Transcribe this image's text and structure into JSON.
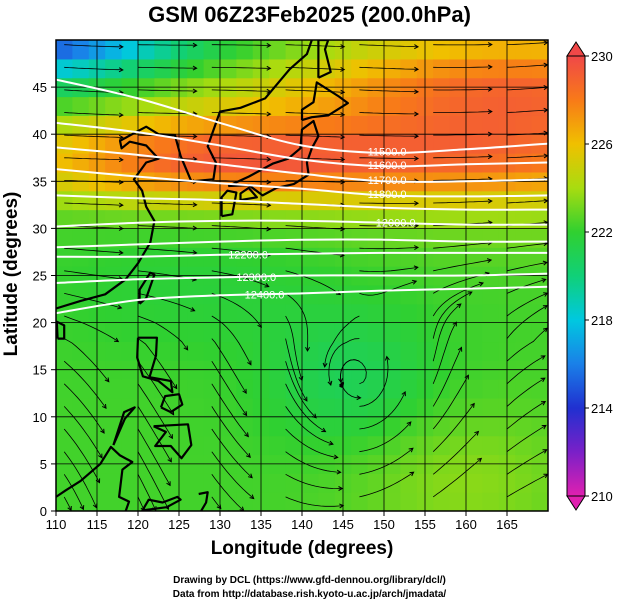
{
  "title": "GSM 06Z23Feb2025 (200.0hPa)",
  "credits": {
    "line1": "Drawing by DCL (https://www.gfd-dennou.org/library/dcl/)",
    "line2": "Data from http://database.rish.kyoto-u.ac.jp/arch/jmadata/"
  },
  "chart_data": {
    "type": "heatmap",
    "title": "GSM 06Z23Feb2025 (200.0hPa)",
    "xlabel": "Longitude (degrees)",
    "ylabel": "Latitude  (degrees)",
    "xlim": [
      110,
      170
    ],
    "ylim": [
      0,
      50
    ],
    "x_ticks": [
      110,
      115,
      120,
      125,
      130,
      135,
      140,
      145,
      150,
      155,
      160,
      165
    ],
    "y_ticks": [
      0,
      5,
      10,
      15,
      20,
      25,
      30,
      35,
      40,
      45
    ],
    "grid": true,
    "colorbar": {
      "min": 210,
      "max": 230,
      "ticks": [
        210,
        214,
        218,
        222,
        226,
        230
      ],
      "stops": [
        {
          "value": 210,
          "color": "#e020b0"
        },
        {
          "value": 212,
          "color": "#7a20c8"
        },
        {
          "value": 214,
          "color": "#2030d0"
        },
        {
          "value": 216,
          "color": "#1a80e8"
        },
        {
          "value": 218,
          "color": "#00c8e0"
        },
        {
          "value": 220,
          "color": "#10d078"
        },
        {
          "value": 222,
          "color": "#30d030"
        },
        {
          "value": 224,
          "color": "#a8dc10"
        },
        {
          "value": 226,
          "color": "#f0c000"
        },
        {
          "value": 228,
          "color": "#f87a18"
        },
        {
          "value": 230,
          "color": "#f04848"
        }
      ]
    },
    "height_contours": [
      {
        "label": "11500.0",
        "points": [
          [
            110,
            45.8
          ],
          [
            120,
            43.8
          ],
          [
            130,
            41.2
          ],
          [
            140,
            38.8
          ],
          [
            150,
            38.0
          ],
          [
            160,
            38.4
          ],
          [
            170,
            39.0
          ]
        ]
      },
      {
        "label": "11600.0",
        "points": [
          [
            110,
            41.2
          ],
          [
            120,
            40.2
          ],
          [
            130,
            38.8
          ],
          [
            140,
            37.3
          ],
          [
            150,
            36.6
          ],
          [
            160,
            36.8
          ],
          [
            170,
            37.0
          ]
        ]
      },
      {
        "label": "11700.0",
        "points": [
          [
            110,
            38.6
          ],
          [
            120,
            37.8
          ],
          [
            130,
            36.8
          ],
          [
            140,
            35.8
          ],
          [
            150,
            35.0
          ],
          [
            160,
            35.0
          ],
          [
            170,
            35.2
          ]
        ]
      },
      {
        "label": "11800.0",
        "points": [
          [
            110,
            36.3
          ],
          [
            120,
            35.5
          ],
          [
            130,
            34.8
          ],
          [
            140,
            34.2
          ],
          [
            150,
            33.5
          ],
          [
            160,
            33.4
          ],
          [
            170,
            33.5
          ]
        ]
      },
      {
        "label": "11900.0",
        "points": [
          [
            110,
            33.5
          ],
          [
            120,
            33.2
          ],
          [
            130,
            33.0
          ],
          [
            140,
            32.6
          ],
          [
            150,
            32.2
          ],
          [
            160,
            32.0
          ],
          [
            170,
            32.0
          ]
        ]
      },
      {
        "label": "12000.0",
        "points": [
          [
            110,
            30.2
          ],
          [
            120,
            30.6
          ],
          [
            130,
            30.8
          ],
          [
            140,
            30.8
          ],
          [
            150,
            30.6
          ],
          [
            160,
            30.4
          ],
          [
            170,
            30.4
          ]
        ]
      },
      {
        "label": "12100.0",
        "points": [
          [
            110,
            28.0
          ],
          [
            120,
            28.3
          ],
          [
            130,
            28.6
          ],
          [
            140,
            28.8
          ],
          [
            150,
            28.8
          ],
          [
            160,
            28.6
          ],
          [
            170,
            28.6
          ]
        ]
      },
      {
        "label": "12200.0",
        "points": [
          [
            110,
            27.0
          ],
          [
            120,
            27.0
          ],
          [
            130,
            27.2
          ],
          [
            140,
            27.3
          ],
          [
            150,
            27.4
          ],
          [
            160,
            27.4
          ],
          [
            170,
            27.4
          ]
        ]
      },
      {
        "label": "12300.0",
        "points": [
          [
            110,
            24.2
          ],
          [
            120,
            24.6
          ],
          [
            130,
            24.8
          ],
          [
            140,
            25.0
          ],
          [
            150,
            25.0
          ],
          [
            160,
            25.0
          ],
          [
            170,
            25.2
          ]
        ]
      },
      {
        "label": "12400.0",
        "points": [
          [
            110,
            21.0
          ],
          [
            120,
            22.4
          ],
          [
            130,
            22.9
          ],
          [
            140,
            23.1
          ],
          [
            150,
            23.4
          ],
          [
            160,
            23.6
          ],
          [
            170,
            23.8
          ]
        ]
      }
    ],
    "contour_labels_shown": [
      "11500.0",
      "11600.0",
      "11700.0",
      "11800.0",
      "12000.0",
      "12200.0",
      "12300.0",
      "12400.0"
    ]
  }
}
